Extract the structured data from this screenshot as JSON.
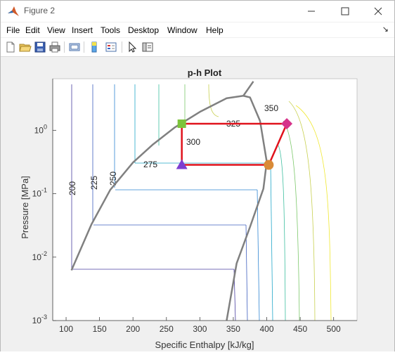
{
  "window": {
    "title": "Figure 2"
  },
  "menu": [
    "File",
    "Edit",
    "View",
    "Insert",
    "Tools",
    "Desktop",
    "Window",
    "Help"
  ],
  "toolbar": [
    "new-figure",
    "open-file",
    "save",
    "print",
    "link-plot",
    "insert-colorbar",
    "insert-legend",
    "edit-plot",
    "property-inspector"
  ],
  "colors": {
    "state_line": "#e0121c",
    "dome": "#808080",
    "marker1": "#7cc43a",
    "marker2": "#d6338a",
    "marker3": "#d98b38",
    "marker4": "#7c3fd1"
  },
  "chart_data": {
    "type": "line",
    "title": "p-h Plot",
    "xlabel": "Specific Enthalpy [kJ/kg]",
    "ylabel": "Pressure [MPa]",
    "xlim": [
      80,
      535
    ],
    "ylim": [
      0.001,
      6.5
    ],
    "yscale": "log",
    "xticks": [
      "100",
      "150",
      "200",
      "250",
      "300",
      "350",
      "400",
      "450",
      "500"
    ],
    "yticks": [
      "10^{-3}",
      "10^{-2}",
      "10^{-1}",
      "10^{0}"
    ],
    "isotherm_labels": [
      "200",
      "225",
      "250",
      "275",
      "300",
      "325",
      "350"
    ],
    "saturation_dome": [
      {
        "h": 108,
        "p": 0.0062
      },
      {
        "h": 138,
        "p": 0.033
      },
      {
        "h": 166,
        "p": 0.115
      },
      {
        "h": 200,
        "p": 0.31
      },
      {
        "h": 230,
        "p": 0.6
      },
      {
        "h": 262,
        "p": 1.1
      },
      {
        "h": 300,
        "p": 1.95
      },
      {
        "h": 340,
        "p": 3.2
      },
      {
        "h": 365,
        "p": 3.5
      },
      {
        "h": 375,
        "p": 3.3
      },
      {
        "h": 390,
        "p": 1.4
      },
      {
        "h": 400,
        "p": 0.32
      },
      {
        "h": 395,
        "p": 0.12
      },
      {
        "h": 375,
        "p": 0.03
      },
      {
        "h": 355,
        "p": 0.008
      },
      {
        "h": 340,
        "p": 0.001
      }
    ],
    "cycle": [
      {
        "h": 273,
        "p": 1.27
      },
      {
        "h": 273,
        "p": 0.285
      },
      {
        "h": 403,
        "p": 0.285
      },
      {
        "h": 430,
        "p": 1.27
      },
      {
        "h": 273,
        "p": 1.27
      }
    ],
    "markers": [
      {
        "h": 273,
        "p": 1.27,
        "shape": "square"
      },
      {
        "h": 430,
        "p": 1.27,
        "shape": "diamond"
      },
      {
        "h": 403,
        "p": 0.285,
        "shape": "circle"
      },
      {
        "h": 273,
        "p": 0.285,
        "shape": "triangle"
      }
    ]
  }
}
